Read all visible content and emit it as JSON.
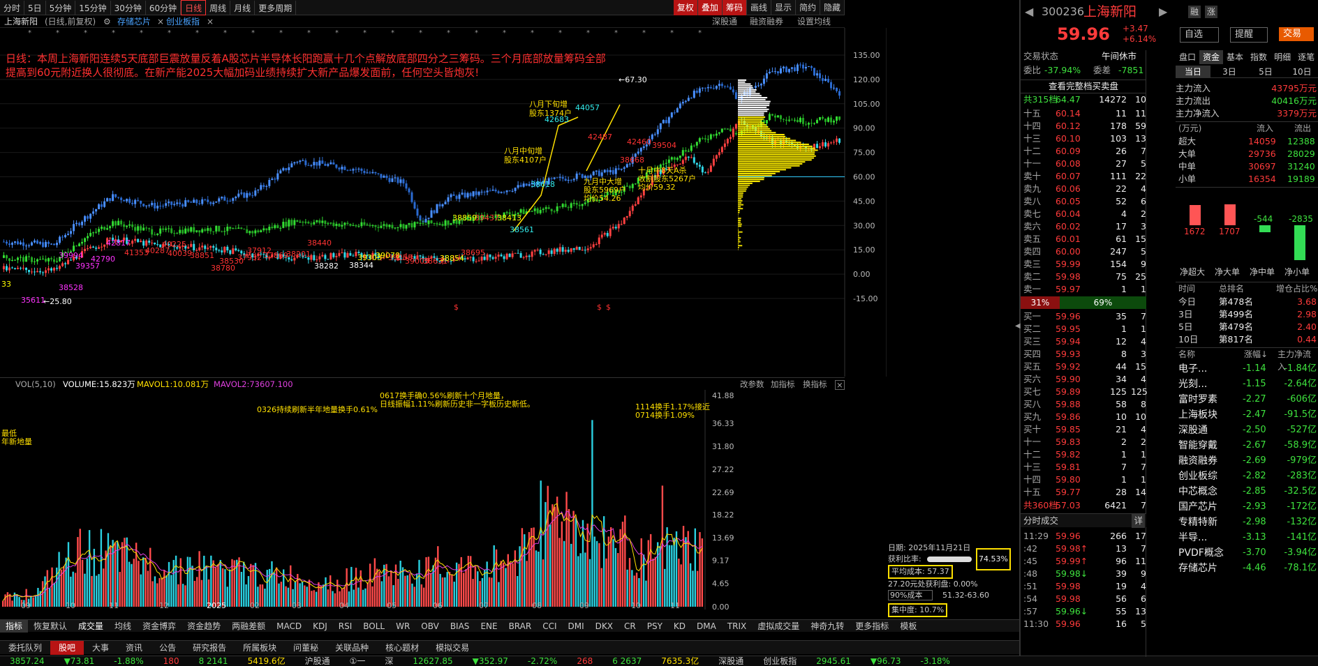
{
  "toolbar": {
    "periods": [
      "分时",
      "5日",
      "5分钟",
      "15分钟",
      "30分钟",
      "60分钟",
      "日线",
      "周线",
      "月线",
      "更多周期"
    ],
    "active_period": "日线",
    "right_buttons": [
      "复权",
      "叠加",
      "筹码",
      "画线",
      "显示",
      "简约",
      "隐藏"
    ]
  },
  "chart_header": {
    "stock": "上海新阳",
    "mode": "(日线,前复权)",
    "tag1": "存储芯片",
    "tag2": "创业板指",
    "links": [
      "深股通",
      "融资融券",
      "设置均线"
    ]
  },
  "annotation": {
    "line1": "日线：本周上海新阳连续5天底部巨震放量反着A股芯片半导体长阳跑赢十几个点解放底部四分之三筹码。三个月底部放量筹码全部",
    "line2": "提高到60元附近换人很彻底。在新产能2025大幅加码业绩持续扩大新产品爆发面前，任何空头皆炮灰!"
  },
  "price_axis": [
    "135.00",
    "120.00",
    "105.00",
    "90.00",
    "75.00",
    "60.00",
    "45.00",
    "30.00",
    "15.00",
    "0.00",
    "-15.00"
  ],
  "vol_axis": [
    "41.88",
    "36.33",
    "31.80",
    "27.22",
    "22.69",
    "18.22",
    "13.69",
    "9.17",
    "4.65",
    "0.00"
  ],
  "x_axis": [
    "09",
    "10",
    "11",
    "12",
    "2025",
    "02",
    "03",
    "04",
    "05",
    "06",
    "07",
    "08",
    "09",
    "10",
    "11"
  ],
  "vol_header": {
    "name": "VOL(5,10)",
    "volume": "VOLUME:15.823万",
    "mavol1": "MAVOL1:10.081万",
    "mavol2": "MAVOL2:73607.100",
    "links": [
      "改参数",
      "加指标",
      "换指标"
    ]
  },
  "chart_notes": {
    "n1": "八月下旬增",
    "n1b": "股东1374户",
    "n2": "八月中旬增",
    "n2b": "股东4107户",
    "n3": "九月中大增",
    "n3b": "股东5969户",
    "n3c": "均价54.26",
    "n4": "十月中8天A杀",
    "n4b": "收割股东5267户",
    "n4c": "均价59.32",
    "n5": "←67.30",
    "n6": "←25.80",
    "v1": "0617换手确0.56%刷新十个月地量，",
    "v1b": "日线振幅1.11%刷新历史非一字板历史新低。",
    "v2": "0326持续刷新半年地量换手0.61%",
    "v3": "1114换手1.17%接近",
    "v3b": "0714换手1.09%",
    "v4": "最低",
    "v4b": "年新地量"
  },
  "markers": [
    "39994",
    "39357",
    "42790",
    "42817",
    "41353",
    "40287",
    "40225",
    "40039",
    "38851",
    "38780",
    "38530",
    "37932",
    "37912",
    "37869",
    "38201",
    "38440",
    "38282",
    "38344",
    "39303",
    "39078",
    "39253",
    "39005",
    "38631",
    "38854",
    "38695",
    "38859",
    "39437",
    "38413",
    "38561",
    "38618",
    "42683",
    "44057",
    "42487",
    "38668",
    "42460",
    "39504",
    "38528",
    "35611",
    "33"
  ],
  "cost": {
    "date": "日期: 2025年11月21日",
    "profit_label": "获利比率:",
    "profit": "74.53%",
    "avg_cost": "平均成本: 57.37",
    "cost_line": "27.20元处获利盘: 0.00%",
    "range_label": "90%成本",
    "range": "51.32-63.60",
    "concentration": "集中度: 10.7%"
  },
  "indicator_tabs": [
    "指标",
    "恢复默认",
    "成交量",
    "均线",
    "资金博弈",
    "资金趋势",
    "两融差额",
    "MACD",
    "KDJ",
    "RSI",
    "BOLL",
    "WR",
    "OBV",
    "BIAS",
    "ENE",
    "BRAR",
    "CCI",
    "DMI",
    "DKX",
    "CR",
    "PSY",
    "KD",
    "DMA",
    "TRIX",
    "虚拟成交量",
    "神奇九转",
    "更多指标",
    "模板"
  ],
  "bottom_tabs": [
    "委托队列",
    "股吧",
    "大事",
    "资讯",
    "公告",
    "研究报告",
    "所属板块",
    "问董秘",
    "关联品种",
    "核心题材",
    "模拟交易"
  ],
  "ticker": [
    "3857.24",
    "▼73.81",
    "-1.88%",
    "180",
    "8 2141",
    "5419.6亿",
    "沪股通",
    "①一",
    "深",
    "12627.85",
    "▼352.97",
    "-2.72%",
    "268",
    "6 2637",
    "7635.3亿",
    "深股通",
    "创业板指",
    "2945.61",
    "▼96.73",
    "-3.18%"
  ],
  "stock": {
    "code": "300236",
    "name": "上海新阳",
    "price": "59.96",
    "change": "+3.47",
    "pct": "+6.14%",
    "btn1": "融",
    "btn2": "涨",
    "watch": "自选",
    "alert": "提醒",
    "trade": "交易"
  },
  "status": {
    "label": "交易状态",
    "value": "午间休市",
    "webi_label": "委比",
    "webi": "-37.94%",
    "weicha_label": "委差",
    "weicha": "-7851",
    "full": "查看完整档买卖盘"
  },
  "sell_total": {
    "label": "共315档",
    "price": "64.47",
    "vol": "14272",
    "n": "10"
  },
  "sells": [
    [
      "十五",
      "60.14",
      "11",
      "11"
    ],
    [
      "十四",
      "60.12",
      "178",
      "59"
    ],
    [
      "十三",
      "60.10",
      "103",
      "13"
    ],
    [
      "十二",
      "60.09",
      "26",
      "7"
    ],
    [
      "十一",
      "60.08",
      "27",
      "5"
    ],
    [
      "卖十",
      "60.07",
      "111",
      "22"
    ],
    [
      "卖九",
      "60.06",
      "22",
      "4"
    ],
    [
      "卖八",
      "60.05",
      "52",
      "6"
    ],
    [
      "卖七",
      "60.04",
      "4",
      "2"
    ],
    [
      "卖六",
      "60.02",
      "17",
      "3"
    ],
    [
      "卖五",
      "60.01",
      "61",
      "15"
    ],
    [
      "卖四",
      "60.00",
      "247",
      "5"
    ],
    [
      "卖三",
      "59.99",
      "154",
      "9"
    ],
    [
      "卖二",
      "59.98",
      "75",
      "25"
    ],
    [
      "卖一",
      "59.97",
      "1",
      "1"
    ]
  ],
  "ratio": {
    "buy": "31%",
    "sell": "69%"
  },
  "buys": [
    [
      "买一",
      "59.96",
      "35",
      "7"
    ],
    [
      "买二",
      "59.95",
      "1",
      "1"
    ],
    [
      "买三",
      "59.94",
      "12",
      "4"
    ],
    [
      "买四",
      "59.93",
      "8",
      "3"
    ],
    [
      "买五",
      "59.92",
      "44",
      "15"
    ],
    [
      "买六",
      "59.90",
      "34",
      "4"
    ],
    [
      "买七",
      "59.89",
      "125",
      "125"
    ],
    [
      "买八",
      "59.88",
      "58",
      "8"
    ],
    [
      "买九",
      "59.86",
      "10",
      "10"
    ],
    [
      "买十",
      "59.85",
      "21",
      "4"
    ],
    [
      "十一",
      "59.83",
      "2",
      "2"
    ],
    [
      "十二",
      "59.82",
      "1",
      "1"
    ],
    [
      "十三",
      "59.81",
      "7",
      "7"
    ],
    [
      "十四",
      "59.80",
      "1",
      "1"
    ],
    [
      "十五",
      "59.77",
      "28",
      "14"
    ]
  ],
  "buy_total": {
    "label": "共360档",
    "price": "57.03",
    "vol": "6421",
    "n": "7"
  },
  "ticks_header": "分时成交",
  "ticks_btn": "详",
  "ticks": [
    [
      "11:29",
      "59.96",
      "266",
      "17"
    ],
    [
      ":42",
      "59.98↑",
      "13",
      "7"
    ],
    [
      ":45",
      "59.99↑",
      "96",
      "11"
    ],
    [
      ":48",
      "59.98↓",
      "39",
      "9"
    ],
    [
      ":51",
      "59.98",
      "19",
      "4"
    ],
    [
      ":54",
      "59.98",
      "56",
      "6"
    ],
    [
      ":57",
      "59.96↓",
      "55",
      "13"
    ],
    [
      "11:30",
      "59.96",
      "16",
      "5"
    ]
  ],
  "fund_tabs": [
    "盘口",
    "资金",
    "基本",
    "指数",
    "明细",
    "逐笔"
  ],
  "fund_periods": [
    "当日",
    "3日",
    "5日",
    "10日"
  ],
  "fund_main": [
    [
      "主力流入",
      "43795万元"
    ],
    [
      "主力流出",
      "40416万元"
    ],
    [
      "主力净流入",
      "3379万元"
    ]
  ],
  "fund_table_header": [
    "(万元)",
    "流入",
    "流出"
  ],
  "fund_table": [
    [
      "超大",
      "14059",
      "12388"
    ],
    [
      "大单",
      "29736",
      "28029"
    ],
    [
      "中单",
      "30697",
      "31240"
    ],
    [
      "小单",
      "16354",
      "19189"
    ]
  ],
  "fund_bars": [
    {
      "label": "净超大",
      "value": "1672",
      "v": 1672
    },
    {
      "label": "净大单",
      "value": "1707",
      "v": 1707
    },
    {
      "label": "净中单",
      "value": "-544",
      "v": -544
    },
    {
      "label": "净小单",
      "value": "-2835",
      "v": -2835
    }
  ],
  "rank_header": [
    "时间",
    "总排名",
    "增仓占比%"
  ],
  "ranks": [
    [
      "今日",
      "第478名",
      "3.68"
    ],
    [
      "3日",
      "第499名",
      "2.98"
    ],
    [
      "5日",
      "第479名",
      "2.40"
    ],
    [
      "10日",
      "第817名",
      "0.44"
    ]
  ],
  "sector_header": [
    "名称",
    "涨幅↓",
    "主力净流入"
  ],
  "sectors": [
    [
      "电子...",
      "-1.14",
      "-1.84亿"
    ],
    [
      "光刻...",
      "-1.15",
      "-2.64亿"
    ],
    [
      "富时罗素",
      "-2.27",
      "-606亿"
    ],
    [
      "上海板块",
      "-2.47",
      "-91.5亿"
    ],
    [
      "深股通",
      "-2.50",
      "-527亿"
    ],
    [
      "智能穿戴",
      "-2.67",
      "-58.9亿"
    ],
    [
      "融资融券",
      "-2.69",
      "-979亿"
    ],
    [
      "创业板综",
      "-2.82",
      "-283亿"
    ],
    [
      "中芯概念",
      "-2.85",
      "-32.5亿"
    ],
    [
      "国产芯片",
      "-2.93",
      "-172亿"
    ],
    [
      "专精特新",
      "-2.98",
      "-132亿"
    ],
    [
      "半导...",
      "-3.13",
      "-141亿"
    ],
    [
      "PVDF概念",
      "-3.70",
      "-3.94亿"
    ],
    [
      "存储芯片",
      "-4.46",
      "-78.1亿"
    ]
  ],
  "colors": {
    "up": "#ff3b3b",
    "down": "#3ee23e",
    "accent": "#ffe000",
    "bg": "#000000",
    "panel": "#111111"
  }
}
